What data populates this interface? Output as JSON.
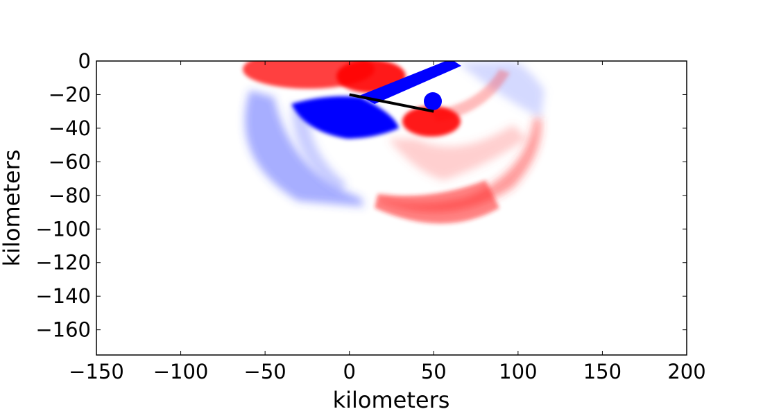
{
  "chart_data": {
    "type": "heatmap",
    "xlabel": "kilometers",
    "ylabel": "kilometers",
    "xlim": [
      -150,
      200
    ],
    "ylim": [
      -175,
      0
    ],
    "x_ticks": [
      -150,
      -100,
      -50,
      0,
      50,
      100,
      150,
      200
    ],
    "x_tick_labels": [
      "−150",
      "−100",
      "−50",
      "0",
      "50",
      "100",
      "150",
      "200"
    ],
    "y_ticks": [
      0,
      -20,
      -40,
      -60,
      -80,
      -100,
      -120,
      -140,
      -160
    ],
    "y_tick_labels": [
      "0",
      "−20",
      "−40",
      "−60",
      "−80",
      "−100",
      "−120",
      "−140",
      "−160"
    ],
    "colormap": [
      "#0000ff",
      "#ffffff",
      "#ff0000"
    ],
    "grid": false,
    "fault_line": {
      "x": [
        0,
        50
      ],
      "y": [
        -20,
        -30
      ],
      "color": "#000000"
    },
    "regions": [
      {
        "kind": "red-lobe-top-left",
        "color": "#ff0000",
        "center": [
          -25,
          -8
        ],
        "extent": [
          -65,
          15,
          -20,
          0
        ]
      },
      {
        "kind": "red-lobe-top-center",
        "color": "#ff0000",
        "center": [
          15,
          -8
        ],
        "extent": [
          -5,
          40,
          -18,
          0
        ]
      },
      {
        "kind": "blue-diagonal-band",
        "color": "#0000ff",
        "from": [
          10,
          -22
        ],
        "to": [
          65,
          0
        ]
      },
      {
        "kind": "blue-core",
        "color": "#0000ff",
        "center": [
          5,
          -33
        ],
        "extent": [
          -35,
          30,
          -48,
          -20
        ]
      },
      {
        "kind": "blue-small-disc",
        "color": "#0000ff",
        "center": [
          50,
          -24
        ]
      },
      {
        "kind": "red-core",
        "color": "#ff0000",
        "center": [
          50,
          -38
        ],
        "extent": [
          35,
          70,
          -45,
          -30
        ]
      },
      {
        "kind": "blue-arc-left",
        "color": "#0000ff",
        "extent": [
          -70,
          15,
          -88,
          -10
        ]
      },
      {
        "kind": "red-arc-bottom",
        "color": "#ff0000",
        "extent": [
          15,
          105,
          -105,
          -45
        ]
      },
      {
        "kind": "blue-faint-right",
        "color": "#0000ff",
        "extent": [
          60,
          115,
          -40,
          0
        ]
      },
      {
        "kind": "red-faint-mid",
        "color": "#ff0000",
        "extent": [
          20,
          70,
          -75,
          -45
        ]
      }
    ]
  }
}
